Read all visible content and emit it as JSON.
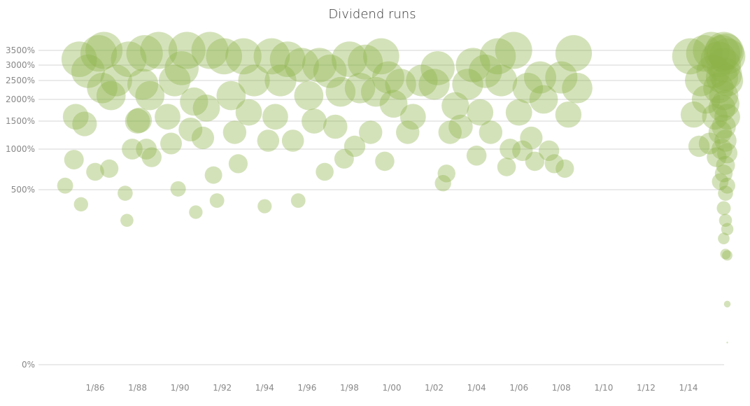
{
  "chart_data": {
    "type": "scatter",
    "title": "Dividend runs",
    "xlabel": "",
    "ylabel": "",
    "y_scale": "custom (0%, then 500%–3500% approximately log-spaced)",
    "grid": true,
    "color": "#8db44a",
    "y_ticks": [
      "0%",
      "500%",
      "1000%",
      "1500%",
      "2000%",
      "2500%",
      "3000%",
      "3500%"
    ],
    "x_ticks": [
      "1/86",
      "1/88",
      "1/90",
      "1/92",
      "1/94",
      "1/96",
      "1/98",
      "1/00",
      "1/02",
      "1/04",
      "1/06",
      "1/08",
      "1/10",
      "1/12",
      "1/14"
    ],
    "xlim": [
      "1984-06",
      "2015-12"
    ],
    "ylim": [
      0,
      3700
    ],
    "points": [
      {
        "date": "1984-08",
        "value": 550
      },
      {
        "date": "1985-01",
        "value": 870
      },
      {
        "date": "1985-02",
        "value": 1600
      },
      {
        "date": "1985-04",
        "value": 3200
      },
      {
        "date": "1985-05",
        "value": 420
      },
      {
        "date": "1985-07",
        "value": 1450
      },
      {
        "date": "1985-09",
        "value": 2800
      },
      {
        "date": "1986-01",
        "value": 720
      },
      {
        "date": "1986-03",
        "value": 3400
      },
      {
        "date": "1986-05",
        "value": 2300
      },
      {
        "date": "1986-06",
        "value": 3500
      },
      {
        "date": "1986-09",
        "value": 760
      },
      {
        "date": "1986-10",
        "value": 2100
      },
      {
        "date": "1987-01",
        "value": 2500
      },
      {
        "date": "1987-06",
        "value": 480
      },
      {
        "date": "1987-07",
        "value": 340
      },
      {
        "date": "1987-08",
        "value": 3200
      },
      {
        "date": "1987-10",
        "value": 1000
      },
      {
        "date": "1988-01",
        "value": 1500
      },
      {
        "date": "1988-02",
        "value": 1520
      },
      {
        "date": "1988-04",
        "value": 2400
      },
      {
        "date": "1988-05",
        "value": 3400
      },
      {
        "date": "1988-06",
        "value": 1000
      },
      {
        "date": "1988-08",
        "value": 2100
      },
      {
        "date": "1988-09",
        "value": 900
      },
      {
        "date": "1989-01",
        "value": 3500
      },
      {
        "date": "1989-06",
        "value": 1600
      },
      {
        "date": "1989-08",
        "value": 1100
      },
      {
        "date": "1989-10",
        "value": 2500
      },
      {
        "date": "1989-12",
        "value": 510
      },
      {
        "date": "1990-02",
        "value": 2900
      },
      {
        "date": "1990-05",
        "value": 3500
      },
      {
        "date": "1990-07",
        "value": 1350
      },
      {
        "date": "1990-09",
        "value": 1950
      },
      {
        "date": "1990-10",
        "value": 380
      },
      {
        "date": "1991-02",
        "value": 1200
      },
      {
        "date": "1991-04",
        "value": 1800
      },
      {
        "date": "1991-06",
        "value": 3500
      },
      {
        "date": "1991-08",
        "value": 680
      },
      {
        "date": "1991-10",
        "value": 440
      },
      {
        "date": "1992-02",
        "value": 3300
      },
      {
        "date": "1992-06",
        "value": 2100
      },
      {
        "date": "1992-08",
        "value": 1300
      },
      {
        "date": "1992-10",
        "value": 820
      },
      {
        "date": "1993-01",
        "value": 3300
      },
      {
        "date": "1993-04",
        "value": 1700
      },
      {
        "date": "1993-07",
        "value": 2500
      },
      {
        "date": "1994-01",
        "value": 410
      },
      {
        "date": "1994-03",
        "value": 1150
      },
      {
        "date": "1994-05",
        "value": 3300
      },
      {
        "date": "1994-07",
        "value": 1600
      },
      {
        "date": "1994-10",
        "value": 2500
      },
      {
        "date": "1995-02",
        "value": 3200
      },
      {
        "date": "1995-05",
        "value": 1150
      },
      {
        "date": "1995-08",
        "value": 440
      },
      {
        "date": "1995-10",
        "value": 3000
      },
      {
        "date": "1996-02",
        "value": 2100
      },
      {
        "date": "1996-05",
        "value": 1500
      },
      {
        "date": "1996-08",
        "value": 3000
      },
      {
        "date": "1996-11",
        "value": 720
      },
      {
        "date": "1997-02",
        "value": 2800
      },
      {
        "date": "1997-05",
        "value": 1400
      },
      {
        "date": "1997-08",
        "value": 2200
      },
      {
        "date": "1997-10",
        "value": 880
      },
      {
        "date": "1998-01",
        "value": 3200
      },
      {
        "date": "1998-04",
        "value": 1050
      },
      {
        "date": "1998-07",
        "value": 2300
      },
      {
        "date": "1998-10",
        "value": 3100
      },
      {
        "date": "1999-01",
        "value": 1300
      },
      {
        "date": "1999-04",
        "value": 2200
      },
      {
        "date": "1999-07",
        "value": 3300
      },
      {
        "date": "1999-09",
        "value": 850
      },
      {
        "date": "1999-11",
        "value": 2600
      },
      {
        "date": "2000-02",
        "value": 1900
      },
      {
        "date": "2000-06",
        "value": 2400
      },
      {
        "date": "2000-10",
        "value": 1300
      },
      {
        "date": "2001-01",
        "value": 1600
      },
      {
        "date": "2001-06",
        "value": 2500
      },
      {
        "date": "2002-01",
        "value": 2400
      },
      {
        "date": "2002-03",
        "value": 2900
      },
      {
        "date": "2002-06",
        "value": 580
      },
      {
        "date": "2002-08",
        "value": 700
      },
      {
        "date": "2002-10",
        "value": 1300
      },
      {
        "date": "2003-01",
        "value": 1850
      },
      {
        "date": "2003-04",
        "value": 1400
      },
      {
        "date": "2003-08",
        "value": 2400
      },
      {
        "date": "2003-11",
        "value": 3000
      },
      {
        "date": "2004-01",
        "value": 920
      },
      {
        "date": "2004-03",
        "value": 1700
      },
      {
        "date": "2004-06",
        "value": 2800
      },
      {
        "date": "2004-09",
        "value": 1300
      },
      {
        "date": "2005-01",
        "value": 3300
      },
      {
        "date": "2005-03",
        "value": 2500
      },
      {
        "date": "2005-06",
        "value": 780
      },
      {
        "date": "2005-08",
        "value": 1000
      },
      {
        "date": "2005-10",
        "value": 3500
      },
      {
        "date": "2006-01",
        "value": 1700
      },
      {
        "date": "2006-03",
        "value": 980
      },
      {
        "date": "2006-06",
        "value": 2300
      },
      {
        "date": "2006-08",
        "value": 1200
      },
      {
        "date": "2006-10",
        "value": 850
      },
      {
        "date": "2007-01",
        "value": 2600
      },
      {
        "date": "2007-03",
        "value": 2000
      },
      {
        "date": "2007-06",
        "value": 980
      },
      {
        "date": "2007-09",
        "value": 820
      },
      {
        "date": "2008-01",
        "value": 2600
      },
      {
        "date": "2008-03",
        "value": 760
      },
      {
        "date": "2008-05",
        "value": 1650
      },
      {
        "date": "2008-08",
        "value": 3400
      },
      {
        "date": "2008-10",
        "value": 2300
      },
      {
        "date": "2014-02",
        "value": 3300
      },
      {
        "date": "2014-04",
        "value": 1650
      },
      {
        "date": "2014-07",
        "value": 1050
      },
      {
        "date": "2014-08",
        "value": 2500
      },
      {
        "date": "2014-10",
        "value": 3400
      },
      {
        "date": "2014-11",
        "value": 2000
      },
      {
        "date": "2015-01",
        "value": 1100
      },
      {
        "date": "2015-02",
        "value": 3500
      },
      {
        "date": "2015-03",
        "value": 2800
      },
      {
        "date": "2015-04",
        "value": 1600
      },
      {
        "date": "2015-05",
        "value": 900
      },
      {
        "date": "2015-06",
        "value": 3200
      },
      {
        "date": "2015-06",
        "value": 2300
      },
      {
        "date": "2015-07",
        "value": 1300
      },
      {
        "date": "2015-07",
        "value": 600
      },
      {
        "date": "2015-08",
        "value": 3400
      },
      {
        "date": "2015-08",
        "value": 2600
      },
      {
        "date": "2015-08",
        "value": 1800
      },
      {
        "date": "2015-08",
        "value": 1000
      },
      {
        "date": "2015-09",
        "value": 3500
      },
      {
        "date": "2015-09",
        "value": 3000
      },
      {
        "date": "2015-09",
        "value": 2100
      },
      {
        "date": "2015-09",
        "value": 1400
      },
      {
        "date": "2015-09",
        "value": 700
      },
      {
        "date": "2015-09",
        "value": 400
      },
      {
        "date": "2015-09",
        "value": 260
      },
      {
        "date": "2015-10",
        "value": 3450
      },
      {
        "date": "2015-10",
        "value": 2700
      },
      {
        "date": "2015-10",
        "value": 1900
      },
      {
        "date": "2015-10",
        "value": 1150
      },
      {
        "date": "2015-10",
        "value": 800
      },
      {
        "date": "2015-10",
        "value": 480
      },
      {
        "date": "2015-10",
        "value": 340
      },
      {
        "date": "2015-10",
        "value": 200
      },
      {
        "date": "2015-11",
        "value": 3300
      },
      {
        "date": "2015-11",
        "value": 2500
      },
      {
        "date": "2015-11",
        "value": 1600
      },
      {
        "date": "2015-11",
        "value": 950
      },
      {
        "date": "2015-11",
        "value": 550
      },
      {
        "date": "2015-11",
        "value": 300
      },
      {
        "date": "2015-11",
        "value": 195
      },
      {
        "date": "2015-11",
        "value": 60
      },
      {
        "date": "2015-11",
        "value": 8
      }
    ]
  }
}
